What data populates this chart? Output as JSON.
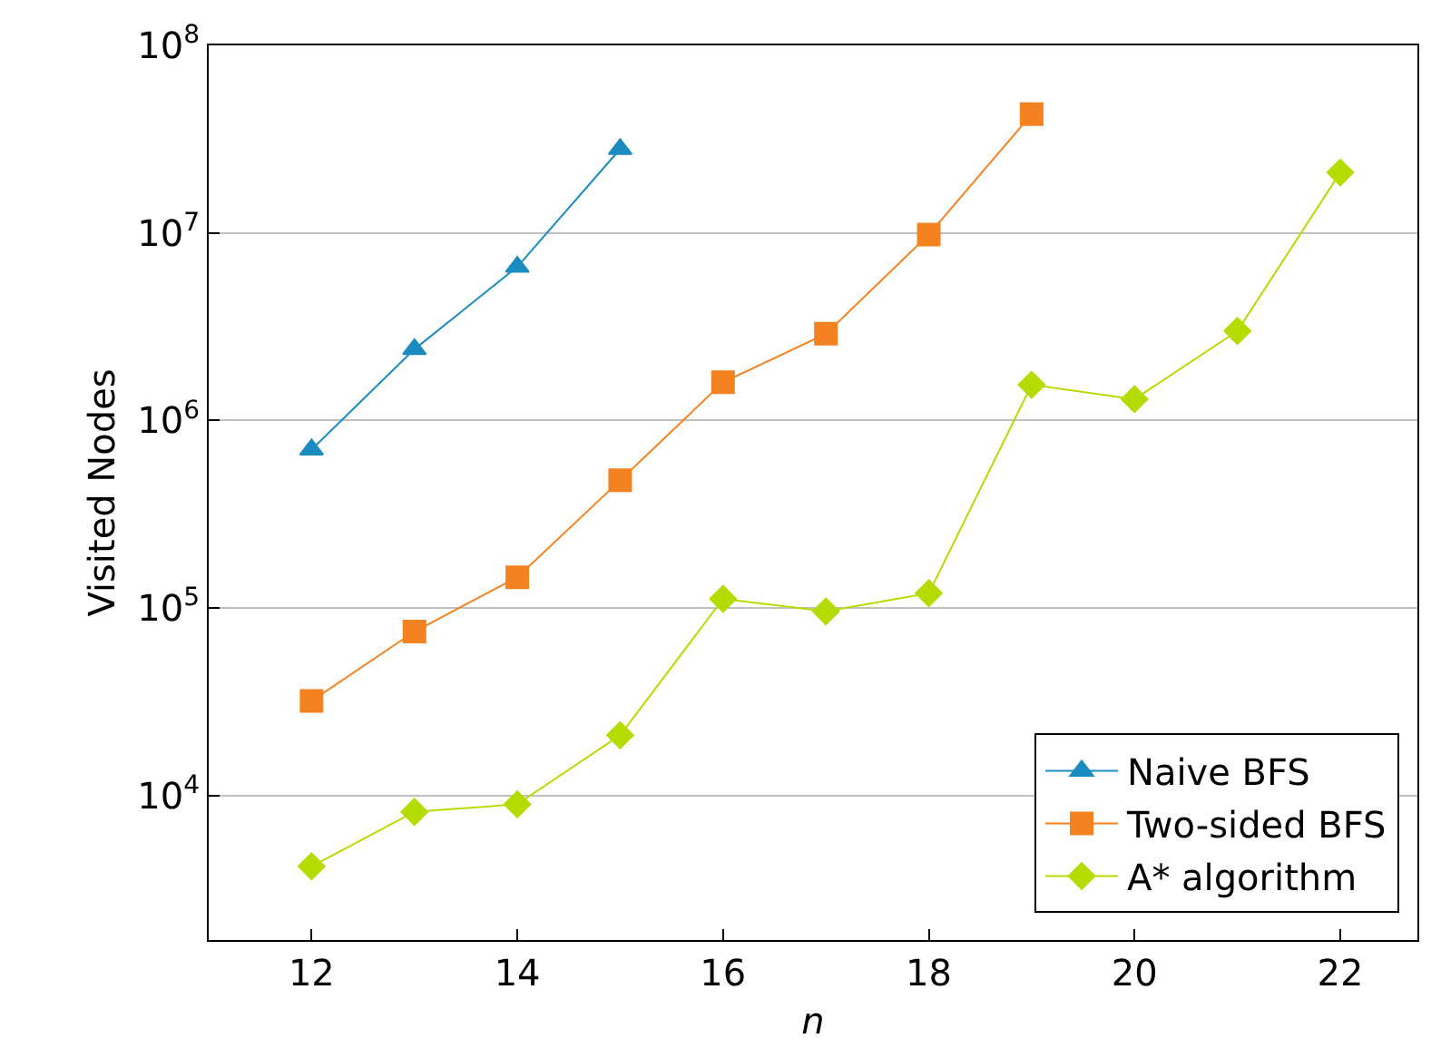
{
  "chart_data": {
    "type": "line",
    "xlabel": "n",
    "ylabel": "Visited Nodes",
    "log": "y",
    "grid": "y",
    "legend": "bottom right",
    "xlim": [
      11,
      22.75
    ],
    "xticks": [
      12,
      14,
      16,
      18,
      20,
      22
    ],
    "ylim": [
      1700,
      100000000
    ],
    "yticks": [
      {
        "value": 10000,
        "label": "10$^{4}$"
      },
      {
        "value": 100000,
        "label": "10$^{5}$"
      },
      {
        "value": 1000000,
        "label": "10$^{6}$"
      },
      {
        "value": 10000000,
        "label": "10$^{7}$"
      },
      {
        "value": 100000000,
        "label": "10$^{8}$"
      }
    ],
    "series": [
      {
        "name": "Naive BFS",
        "color": "#1a8cbf",
        "marker": "triangle",
        "x": [
          12,
          13,
          14,
          15
        ],
        "values": [
          700000,
          2400000,
          6600000,
          28000000
        ]
      },
      {
        "name": "Two-sided BFS",
        "color": "#f58220",
        "marker": "square",
        "x": [
          12,
          13,
          14,
          15,
          16,
          17,
          18,
          19
        ],
        "values": [
          32000,
          75000,
          146000,
          480000,
          1600000,
          2900000,
          9800000,
          43000000
        ]
      },
      {
        "name": "A* algorithm",
        "color": "#b5dc00",
        "marker": "diamond",
        "x": [
          12,
          13,
          14,
          15,
          16,
          17,
          18,
          19,
          20,
          21,
          22
        ],
        "values": [
          4200,
          8200,
          9000,
          21000,
          112000,
          96000,
          120000,
          1550000,
          1300000,
          3000000,
          21000000
        ]
      }
    ]
  }
}
